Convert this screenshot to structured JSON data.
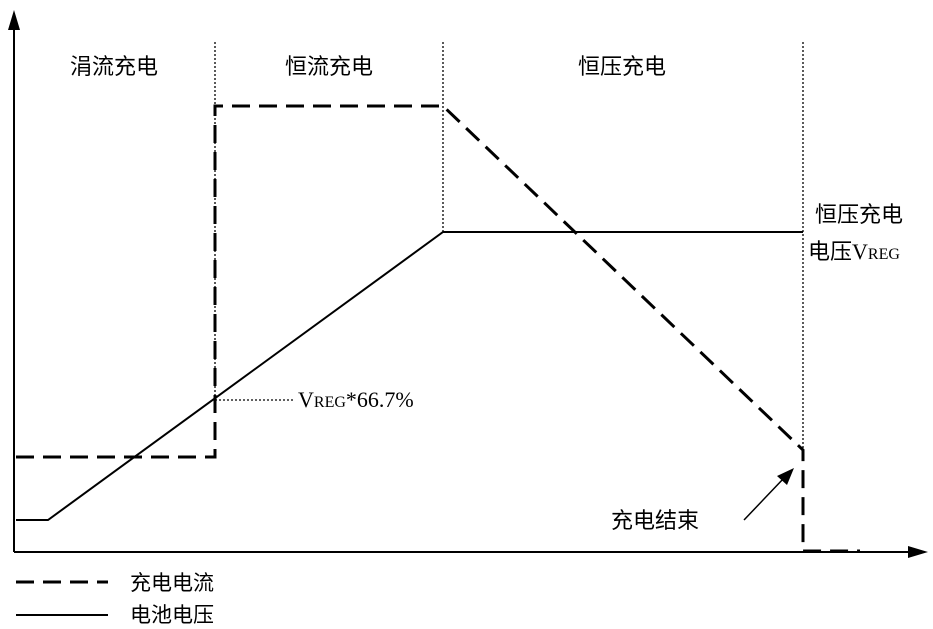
{
  "phases": {
    "trickle": "涓流充电",
    "constant_current": "恒流充电",
    "constant_voltage": "恒压充电"
  },
  "annotations": {
    "vreg_line1": "恒压充电",
    "vreg_line2_prefix": "电压",
    "vreg_v": "V",
    "vreg_rest": "REG",
    "threshold_v": "V",
    "threshold_rest": "REG",
    "threshold_suffix": "*66.7%",
    "end_of_charge": "充电结束"
  },
  "legend": {
    "current_label": "充电电流",
    "voltage_label": "电池电压"
  },
  "styles": {
    "line_color": "#000000",
    "background": "#ffffff"
  }
}
